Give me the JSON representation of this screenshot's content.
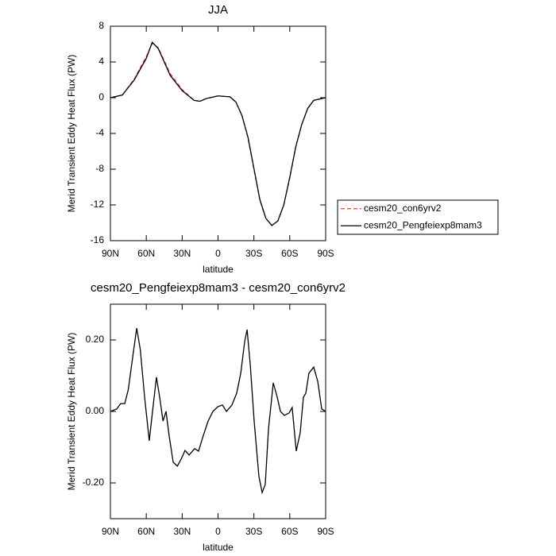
{
  "chart_data": [
    {
      "type": "line",
      "title": "JJA",
      "x_label": "latitude",
      "y_label": "Merid Transient Eddy Heat Flux (PW)",
      "x": [
        90,
        80,
        70,
        60,
        55,
        50,
        40,
        30,
        20,
        15,
        10,
        0,
        -10,
        -15,
        -20,
        -25,
        -30,
        -35,
        -40,
        -45,
        -50,
        -55,
        -60,
        -65,
        -70,
        -75,
        -80,
        -90
      ],
      "series": [
        {
          "name": "cesm20_con6yrv2",
          "color": "#e0403a",
          "dashed": true,
          "values": [
            0,
            0.3,
            2.1,
            4.6,
            6.1,
            5.6,
            2.7,
            0.9,
            -0.3,
            -0.4,
            -0.1,
            0.2,
            0.1,
            -0.5,
            -2,
            -4.5,
            -8,
            -11.5,
            -13.5,
            -14.3,
            -13.8,
            -12,
            -9,
            -5.5,
            -3,
            -1.2,
            -0.3,
            0
          ]
        },
        {
          "name": "cesm20_Pengfeiexp8mam3",
          "color": "#000000",
          "dashed": false,
          "values": [
            0,
            0.3,
            2,
            4.4,
            6.2,
            5.5,
            2.5,
            0.8,
            -0.3,
            -0.4,
            -0.1,
            0.2,
            0.1,
            -0.5,
            -2,
            -4.4,
            -7.9,
            -11.4,
            -13.5,
            -14.3,
            -13.8,
            -12,
            -8.9,
            -5.5,
            -3,
            -1.2,
            -0.3,
            0
          ]
        }
      ],
      "xlim": [
        90,
        -90
      ],
      "xticks": [
        {
          "value": 90,
          "label": "90N"
        },
        {
          "value": 60,
          "label": "60N"
        },
        {
          "value": 30,
          "label": "30N"
        },
        0,
        {
          "value": -30,
          "label": "30S"
        },
        {
          "value": -60,
          "label": "60S"
        },
        {
          "value": -90,
          "label": "90S"
        }
      ],
      "ylim": [
        -16,
        8
      ],
      "yticks": [
        8,
        4,
        0,
        -4,
        -8,
        -12,
        -16
      ],
      "legend": "right"
    },
    {
      "type": "line",
      "title": "cesm20_Pengfeiexp8mam3 - cesm20_con6yrv2",
      "x_label": "latitude",
      "y_label": "Merid Transient Eddy Heat Flux (PW)",
      "x": [
        90,
        84.7,
        81.4,
        78,
        75,
        71.4,
        68,
        65,
        61.4,
        57.5,
        54.8,
        51.5,
        48.8,
        46,
        43.5,
        40.8,
        37.5,
        34,
        30.8,
        27.6,
        24.2,
        19.6,
        16.3,
        12.3,
        8.3,
        4.3,
        0.3,
        -3.7,
        -7,
        -11.6,
        -15.6,
        -19,
        -22.3,
        -24.3,
        -27,
        -30.2,
        -34.2,
        -36.9,
        -39.5,
        -42.2,
        -46.2,
        -49.5,
        -52.2,
        -55.5,
        -59.5,
        -62,
        -65.4,
        -68.7,
        -71.4,
        -73.4,
        -76,
        -80,
        -83.4,
        -86.7,
        -90
      ],
      "series": [
        {
          "name": "cesm20_Pengfeiexp8mam3 - cesm20_con6yrv2",
          "color": "#000000",
          "dashed": false,
          "values": [
            0,
            0.007,
            0.022,
            0.022,
            0.062,
            0.151,
            0.233,
            0.173,
            0.04,
            -0.082,
            0,
            0.096,
            0.04,
            -0.027,
            0,
            -0.07,
            -0.142,
            -0.153,
            -0.133,
            -0.109,
            -0.122,
            -0.104,
            -0.111,
            -0.067,
            -0.027,
            0,
            0.013,
            0.018,
            0,
            0.018,
            0.051,
            0.107,
            0.196,
            0.229,
            0.129,
            -0.027,
            -0.182,
            -0.227,
            -0.204,
            -0.049,
            0.08,
            0.04,
            0,
            -0.011,
            -0.004,
            0.011,
            -0.111,
            -0.06,
            0.04,
            0.051,
            0.107,
            0.124,
            0.084,
            0.007,
            0
          ]
        }
      ],
      "xlim": [
        90,
        -90
      ],
      "xticks": [
        {
          "value": 90,
          "label": "90N"
        },
        {
          "value": 60,
          "label": "60N"
        },
        {
          "value": 30,
          "label": "30N"
        },
        0,
        {
          "value": -30,
          "label": "30S"
        },
        {
          "value": -60,
          "label": "60S"
        },
        {
          "value": -90,
          "label": "90S"
        }
      ],
      "ylim": [
        -0.3,
        0.3
      ],
      "yticks": [
        {
          "value": 0.2,
          "label": "0.20"
        },
        {
          "value": 0,
          "label": "0.00"
        },
        {
          "value": -0.2,
          "label": "-0.20"
        }
      ]
    }
  ]
}
